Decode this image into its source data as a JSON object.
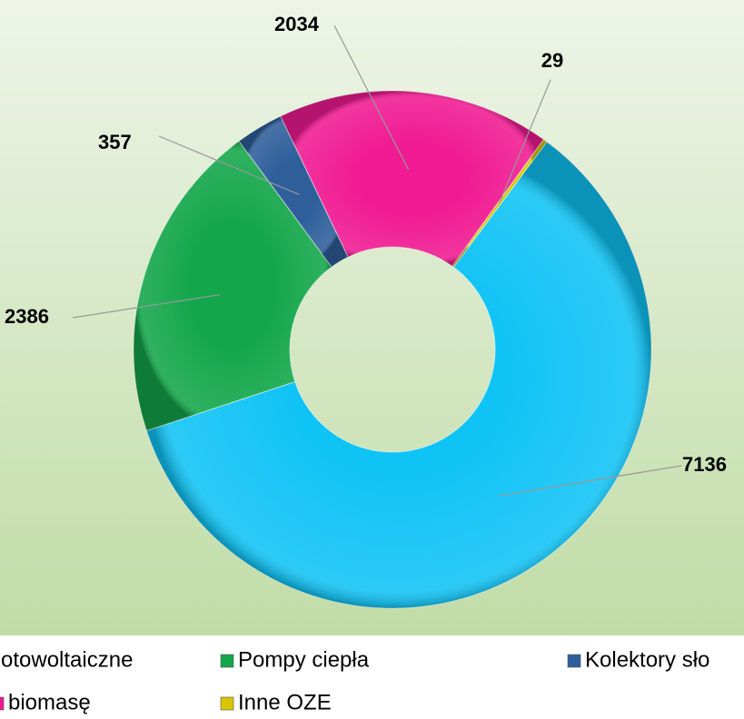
{
  "chart_data": {
    "type": "donut",
    "categories": [
      "otowoltaiczne",
      "Pompy ciepła",
      "Kolektory sło",
      "biomasę",
      "Inne OZE"
    ],
    "values": [
      7136,
      2386,
      357,
      2034,
      29
    ],
    "colors": [
      "#0fc3f5",
      "#13a64a",
      "#2e5f9a",
      "#f01a92",
      "#d8c600"
    ],
    "legend": "bottom"
  }
}
